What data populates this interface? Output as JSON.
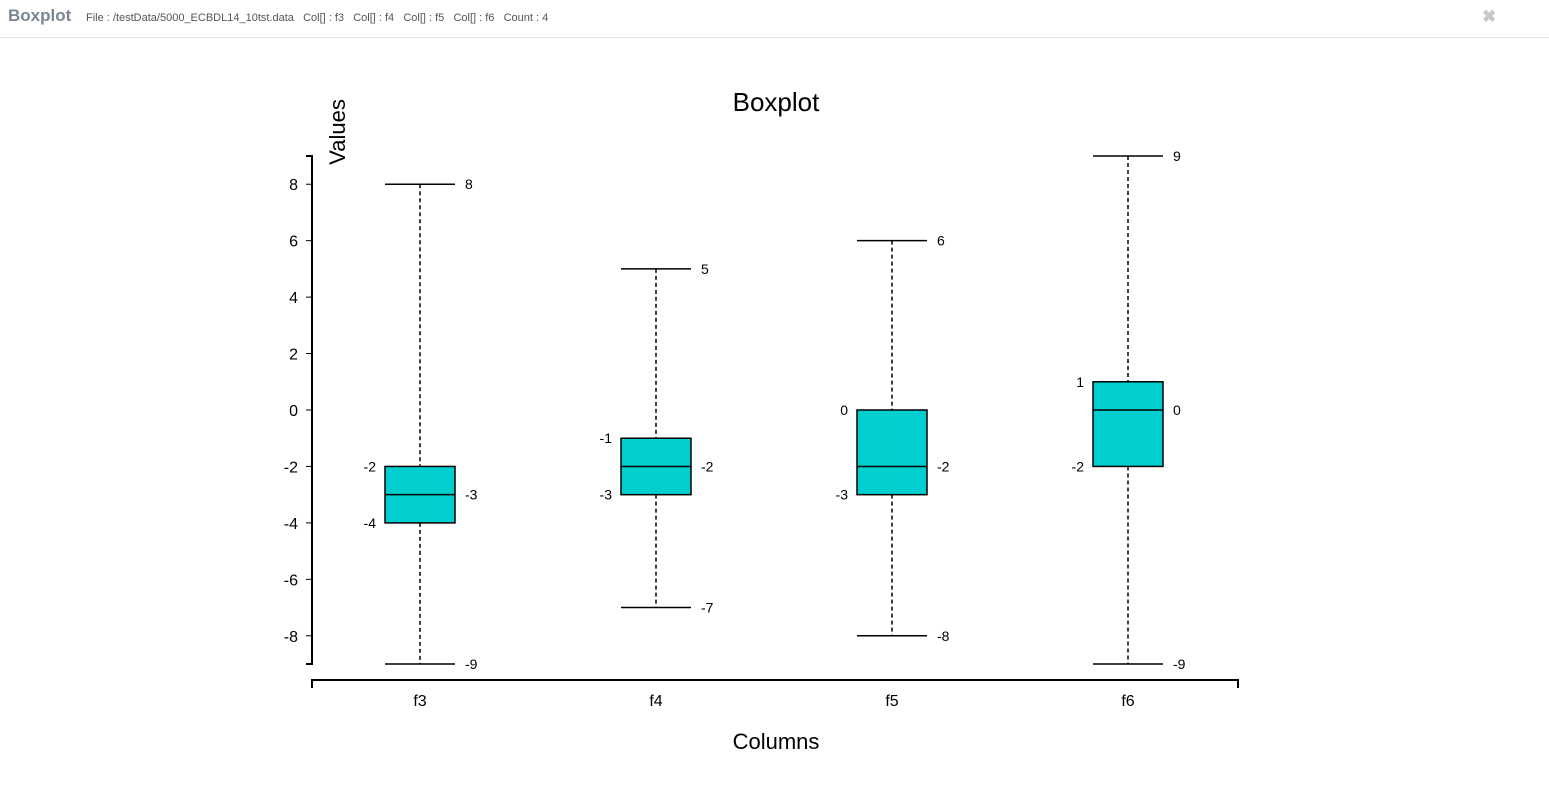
{
  "header": {
    "title": "Boxplot",
    "info": "File : /testData/5000_ECBDL14_10tst.data   Col[] : f3   Col[] : f4   Col[] : f5   Col[] : f6   Count : 4",
    "close_icon": "close-icon"
  },
  "chart_data": {
    "type": "boxplot",
    "title": "Boxplot",
    "xlabel": "Columns",
    "ylabel": "Values",
    "ylim": [
      -9,
      9
    ],
    "yticks": [
      8,
      6,
      4,
      2,
      0,
      -2,
      -4,
      -6,
      -8
    ],
    "categories": [
      "f3",
      "f4",
      "f5",
      "f6"
    ],
    "boxes": [
      {
        "name": "f3",
        "min": -9,
        "q1": -4,
        "median": -3,
        "q3": -2,
        "max": 8
      },
      {
        "name": "f4",
        "min": -7,
        "q1": -3,
        "median": -2,
        "q3": -1,
        "max": 5
      },
      {
        "name": "f5",
        "min": -8,
        "q1": -3,
        "median": -2,
        "q3": 0,
        "max": 6
      },
      {
        "name": "f6",
        "min": -9,
        "q1": -2,
        "median": 0,
        "q3": 1,
        "max": 9
      }
    ],
    "box_color": "#00cecf",
    "grid": false
  }
}
